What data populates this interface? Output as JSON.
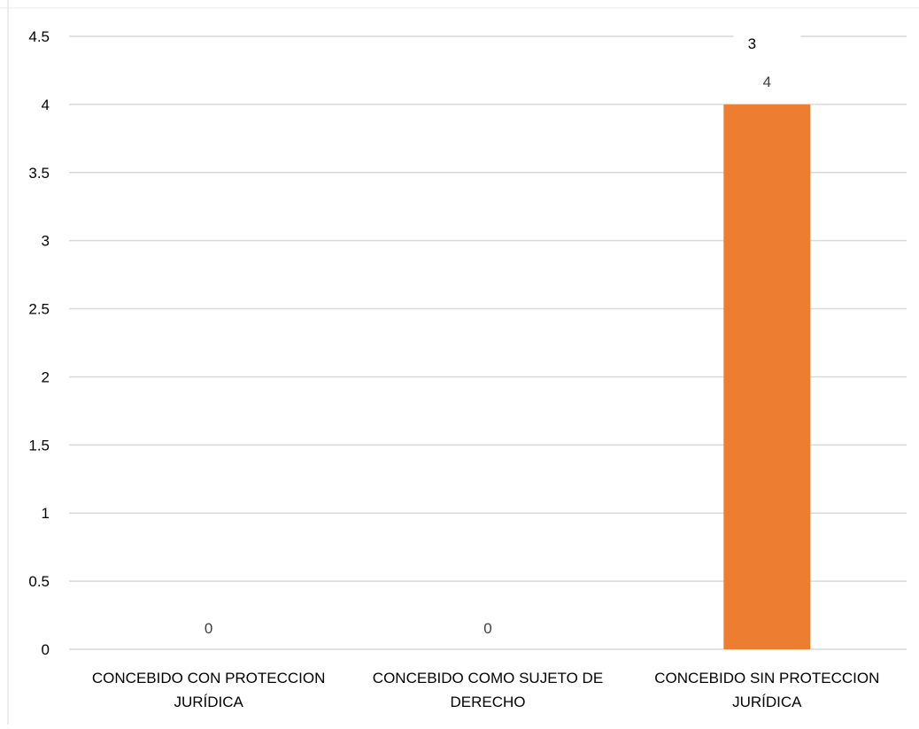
{
  "chart_data": {
    "type": "bar",
    "categories": [
      [
        "CONCEBIDO CON PROTECCION",
        "JURÍDICA"
      ],
      [
        "CONCEBIDO COMO SUJETO DE",
        "DERECHO"
      ],
      [
        "CONCEBIDO SIN PROTECCION",
        "JURÍDICA"
      ]
    ],
    "values": [
      0,
      0,
      4
    ],
    "data_labels": [
      "0",
      "0",
      "4"
    ],
    "ylim": [
      0,
      4.5
    ],
    "yticks": [
      0,
      0.5,
      1,
      1.5,
      2,
      2.5,
      3,
      3.5,
      4,
      4.5
    ],
    "ytick_labels": [
      "0",
      "0.5",
      "1",
      "1.5",
      "2",
      "2.5",
      "3",
      "3.5",
      "4",
      "4.5"
    ],
    "annotations": [
      {
        "text": "3",
        "category_index": 2
      }
    ],
    "bar_color": "#ED7D31",
    "gridline_color": "#D9D9D9",
    "grid": true,
    "legend": "none",
    "title": "",
    "xlabel": "",
    "ylabel": ""
  }
}
